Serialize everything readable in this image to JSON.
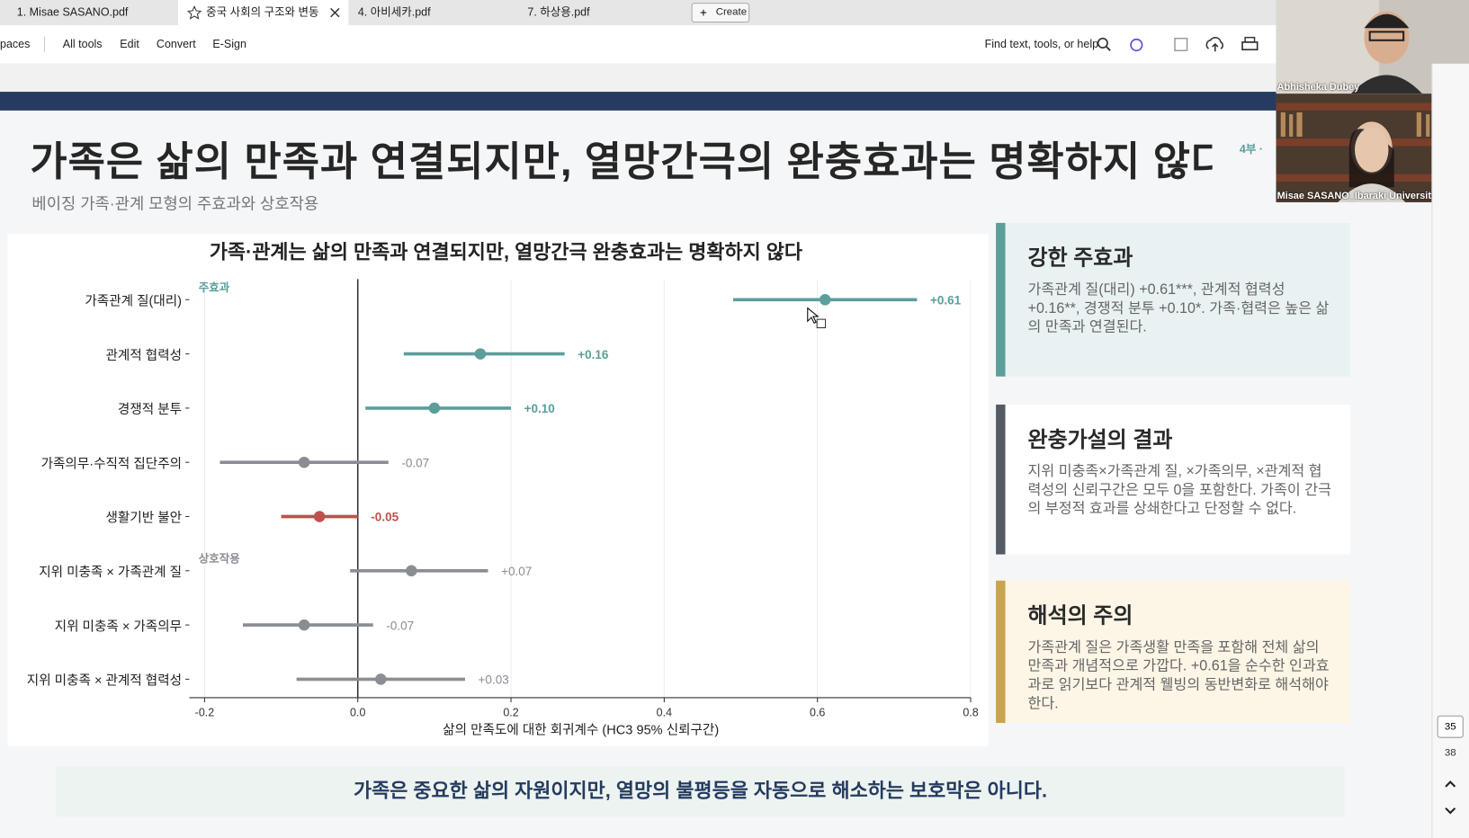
{
  "tabs": [
    "1. Misae SASANO.pdf",
    "중국 사회의 구조와 변동",
    "4. 아비세카.pdf",
    "7. 하상용.pdf"
  ],
  "create_button": "Create",
  "toolbar": {
    "left": [
      "paces",
      "All tools",
      "Edit",
      "Convert",
      "E-Sign"
    ],
    "search": "Find text, tools, or help"
  },
  "slide": {
    "title": "가족은 삶의 만족과 연결되지만, 열망간극의 완충효과는 명확하지 않다.",
    "part_label": "4부 ·",
    "subtitle": "베이징 가족·관계 모형의 주효과와 상호작용",
    "cards": [
      {
        "title": "강한 주효과",
        "body": "가족관계 질(대리) +0.61***, 관계적 협력성 +0.16**, 경쟁적 분투 +0.10*. 가족·협력은 높은 삶의 만족과 연결된다."
      },
      {
        "title": "완충가설의 결과",
        "body": "지위 미충족×가족관계 질, ×가족의무, ×관계적 협력성의 신뢰구간은 모두 0을 포함한다. 가족이 간극의 부정적 효과를 상쇄한다고 단정할 수 없다."
      },
      {
        "title": "해석의 주의",
        "body": "가족관계 질은 가족생활 만족을 포함해 전체 삶의 만족과 개념적으로 가깝다. +0.61을 순수한 인과효과로 읽기보다 관계적 웰빙의 동반변화로 해석해야 한다."
      }
    ],
    "banner": "가족은 중요한 삶의 자원이지만, 열망의 불평등을 자동으로 해소하는 보호막은 아니다."
  },
  "chart_data": {
    "type": "forest",
    "title": "가족·관계는 삶의 만족과 연결되지만, 열망간극 완충효과는 명확하지 않다",
    "x_label": "삶의 만족도에 대한 회귀계수 (HC3 95% 신뢰구간)",
    "categories": [
      "가족관계 질(대리)",
      "관계적 협력성",
      "경쟁적 분투",
      "가족의무·수직적 집단주의",
      "생활기반 불안",
      "지위 미충족 × 가족관계 질",
      "지위 미충족 × 가족의무",
      "지위 미충족 × 관계적 협력성"
    ],
    "values": [
      0.61,
      0.16,
      0.1,
      -0.07,
      -0.05,
      0.07,
      -0.07,
      0.03
    ],
    "value_labels": [
      "+0.61",
      "+0.16",
      "+0.10",
      "-0.07",
      "-0.05",
      "+0.07",
      "-0.07",
      "+0.03"
    ],
    "lower": [
      0.49,
      0.06,
      0.01,
      -0.18,
      -0.1,
      -0.01,
      -0.15,
      -0.08
    ],
    "upper": [
      0.73,
      0.27,
      0.2,
      0.04,
      0.0,
      0.17,
      0.02,
      0.14
    ],
    "colors": [
      "#5b9e9b",
      "#5b9e9b",
      "#5b9e9b",
      "#8a8d94",
      "#c0504d",
      "#8a8d94",
      "#8a8d94",
      "#8a8d94"
    ],
    "emphasis": [
      true,
      true,
      true,
      false,
      true,
      false,
      false,
      false
    ],
    "annotations": [
      {
        "text": "주효과",
        "color": "#5b9e9b"
      },
      {
        "text": "상호작용",
        "color": "#8a8d94"
      }
    ],
    "xlim": [
      -0.22,
      0.8
    ],
    "xticks": [
      -0.2,
      {
        "value": 0,
        "label": "0.0"
      },
      0.2,
      0.4,
      0.6,
      0.8
    ],
    "grid": true
  },
  "video": {
    "participants": [
      "Abhisheka Dubey",
      "Misae SASANO_Ibaraki University"
    ]
  },
  "page_nav": {
    "current": "35",
    "total": "38"
  }
}
